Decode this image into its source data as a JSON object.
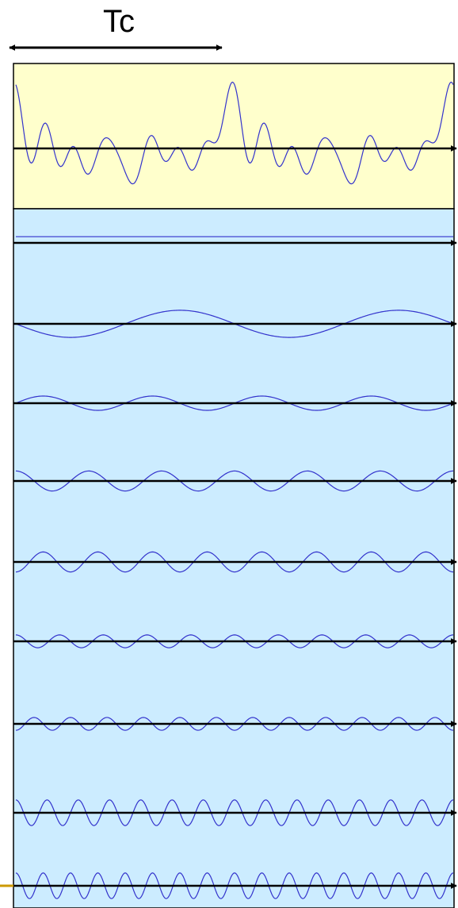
{
  "period_label": "Tc",
  "colors": {
    "signal_panel": "#FFFFCC",
    "harmonics_panel": "#CCECFF",
    "wave": "#3333CC",
    "axis": "#000000",
    "corner_mark": "#CC9900"
  },
  "chart_data": {
    "type": "line",
    "description_of_layout": "",
    "periods_shown": 2,
    "signal": {
      "label": "",
      "harmonics": [
        {
          "n": 0,
          "amp": 0.0,
          "phase": 0
        },
        {
          "n": 1,
          "amp": 0.55,
          "phase": 0
        },
        {
          "n": 2,
          "amp": 0.35,
          "phase": 0
        },
        {
          "n": 3,
          "amp": 0.35,
          "phase": 0
        },
        {
          "n": 4,
          "amp": 0.35,
          "phase": 1.57
        },
        {
          "n": 5,
          "amp": 0.28,
          "phase": 0
        },
        {
          "n": 6,
          "amp": 0.28,
          "phase": 1.57
        },
        {
          "n": 7,
          "amp": 0.35,
          "phase": 0
        },
        {
          "n": 8,
          "amp": 0.35,
          "phase": 0
        }
      ]
    },
    "components": [
      {
        "n": 0,
        "amp": 0.1,
        "phase": 0
      },
      {
        "n": 1,
        "amp": 0.95,
        "phase": 1.57
      },
      {
        "n": 2,
        "amp": 0.5,
        "phase": -1.57
      },
      {
        "n": 3,
        "amp": 0.7,
        "phase": 0
      },
      {
        "n": 4,
        "amp": 0.7,
        "phase": 3.14
      },
      {
        "n": 5,
        "amp": 0.45,
        "phase": 0
      },
      {
        "n": 6,
        "amp": 0.45,
        "phase": 3.14
      },
      {
        "n": 7,
        "amp": 0.9,
        "phase": 0
      },
      {
        "n": 8,
        "amp": 0.9,
        "phase": 0
      }
    ]
  }
}
